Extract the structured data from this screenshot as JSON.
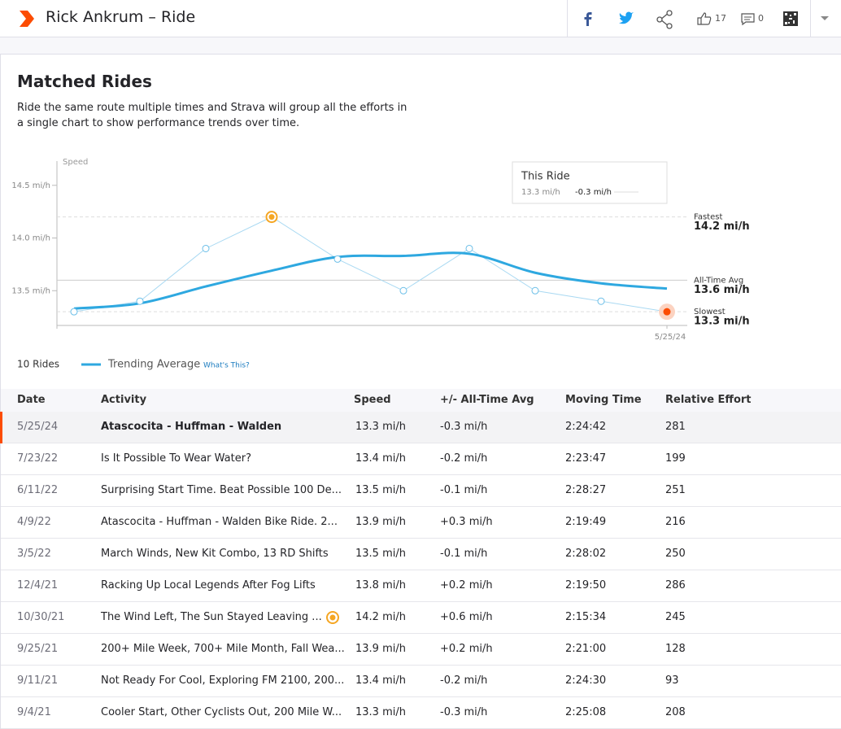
{
  "header": {
    "title": "Rick Ankrum – Ride",
    "kudos": "17",
    "comments": "0"
  },
  "section": {
    "title": "Matched Rides",
    "description": "Ride the same route multiple times and Strava will group all the efforts in a single chart to show performance trends over time."
  },
  "chart_data": {
    "type": "line",
    "y_axis_label": "Speed",
    "categories": [
      null,
      null,
      null,
      null,
      null,
      null,
      null,
      null,
      null,
      "5/25/24"
    ],
    "ylim": [
      13.17,
      14.73
    ],
    "yticks": [
      {
        "value": 13.5,
        "label": "13.5 mi/h"
      },
      {
        "value": 14.0,
        "label": "14.0 mi/h"
      },
      {
        "value": 14.5,
        "label": "14.5 mi/h"
      }
    ],
    "series": [
      {
        "color": "#a9d9f2",
        "values": [
          13.3,
          13.4,
          13.9,
          14.2,
          13.8,
          13.5,
          13.9,
          13.5,
          13.4,
          13.3
        ]
      },
      {
        "name": "Trending Average",
        "color": "#2ea8e0",
        "values": [
          13.33,
          13.38,
          13.54,
          13.69,
          13.82,
          13.83,
          13.85,
          13.67,
          13.57,
          13.52
        ]
      }
    ],
    "reference_lines": [
      {
        "name": "Fastest",
        "value": 14.2,
        "value_label": "14.2 mi/h",
        "style": "dashed"
      },
      {
        "name": "All-Time Avg",
        "value": 13.6,
        "value_label": "13.6 mi/h",
        "style": "solid"
      },
      {
        "name": "Slowest",
        "value": 13.3,
        "value_label": "13.3 mi/h",
        "style": "dashed"
      }
    ],
    "tooltip": {
      "title": "This Ride",
      "speed": "13.3 mi/h",
      "diff": "-0.3 mi/h"
    },
    "legend_count": "10 Rides",
    "legend_link": "What's This?"
  },
  "table": {
    "columns": [
      "Date",
      "Activity",
      "Speed",
      "+/- All-Time Avg",
      "Moving Time",
      "Relative Effort"
    ],
    "rows": [
      [
        "5/25/24",
        "Atascocita - Huffman - Walden",
        "13.3 mi/h",
        "-0.3 mi/h",
        "2:24:42",
        "281"
      ],
      [
        "7/23/22",
        "Is It Possible To Wear Water?",
        "13.4 mi/h",
        "-0.2 mi/h",
        "2:23:47",
        "199"
      ],
      [
        "6/11/22",
        "Surprising Start Time. Beat Possible 100 De...",
        "13.5 mi/h",
        "-0.1 mi/h",
        "2:28:27",
        "251"
      ],
      [
        "4/9/22",
        "Atascocita - Huffman - Walden Bike Ride. 2...",
        "13.9 mi/h",
        "+0.3 mi/h",
        "2:19:49",
        "216"
      ],
      [
        "3/5/22",
        "March Winds, New Kit Combo, 13 RD Shifts",
        "13.5 mi/h",
        "-0.1 mi/h",
        "2:28:02",
        "250"
      ],
      [
        "12/4/21",
        "Racking Up Local Legends After Fog Lifts",
        "13.8 mi/h",
        "+0.2 mi/h",
        "2:19:50",
        "286"
      ],
      [
        "10/30/21",
        "The Wind Left, The Sun Stayed Leaving ...",
        "14.2 mi/h",
        "+0.6 mi/h",
        "2:15:34",
        "245"
      ],
      [
        "9/25/21",
        "200+ Mile Week, 700+ Mile Month, Fall Wea...",
        "13.9 mi/h",
        "+0.2 mi/h",
        "2:21:00",
        "128"
      ],
      [
        "9/11/21",
        "Not Ready For Cool, Exploring FM 2100, 200...",
        "13.4 mi/h",
        "-0.2 mi/h",
        "2:24:30",
        "93"
      ],
      [
        "9/4/21",
        "Cooler Start, Other Cyclists Out, 200 Mile W...",
        "13.3 mi/h",
        "-0.3 mi/h",
        "2:25:08",
        "208"
      ]
    ]
  }
}
